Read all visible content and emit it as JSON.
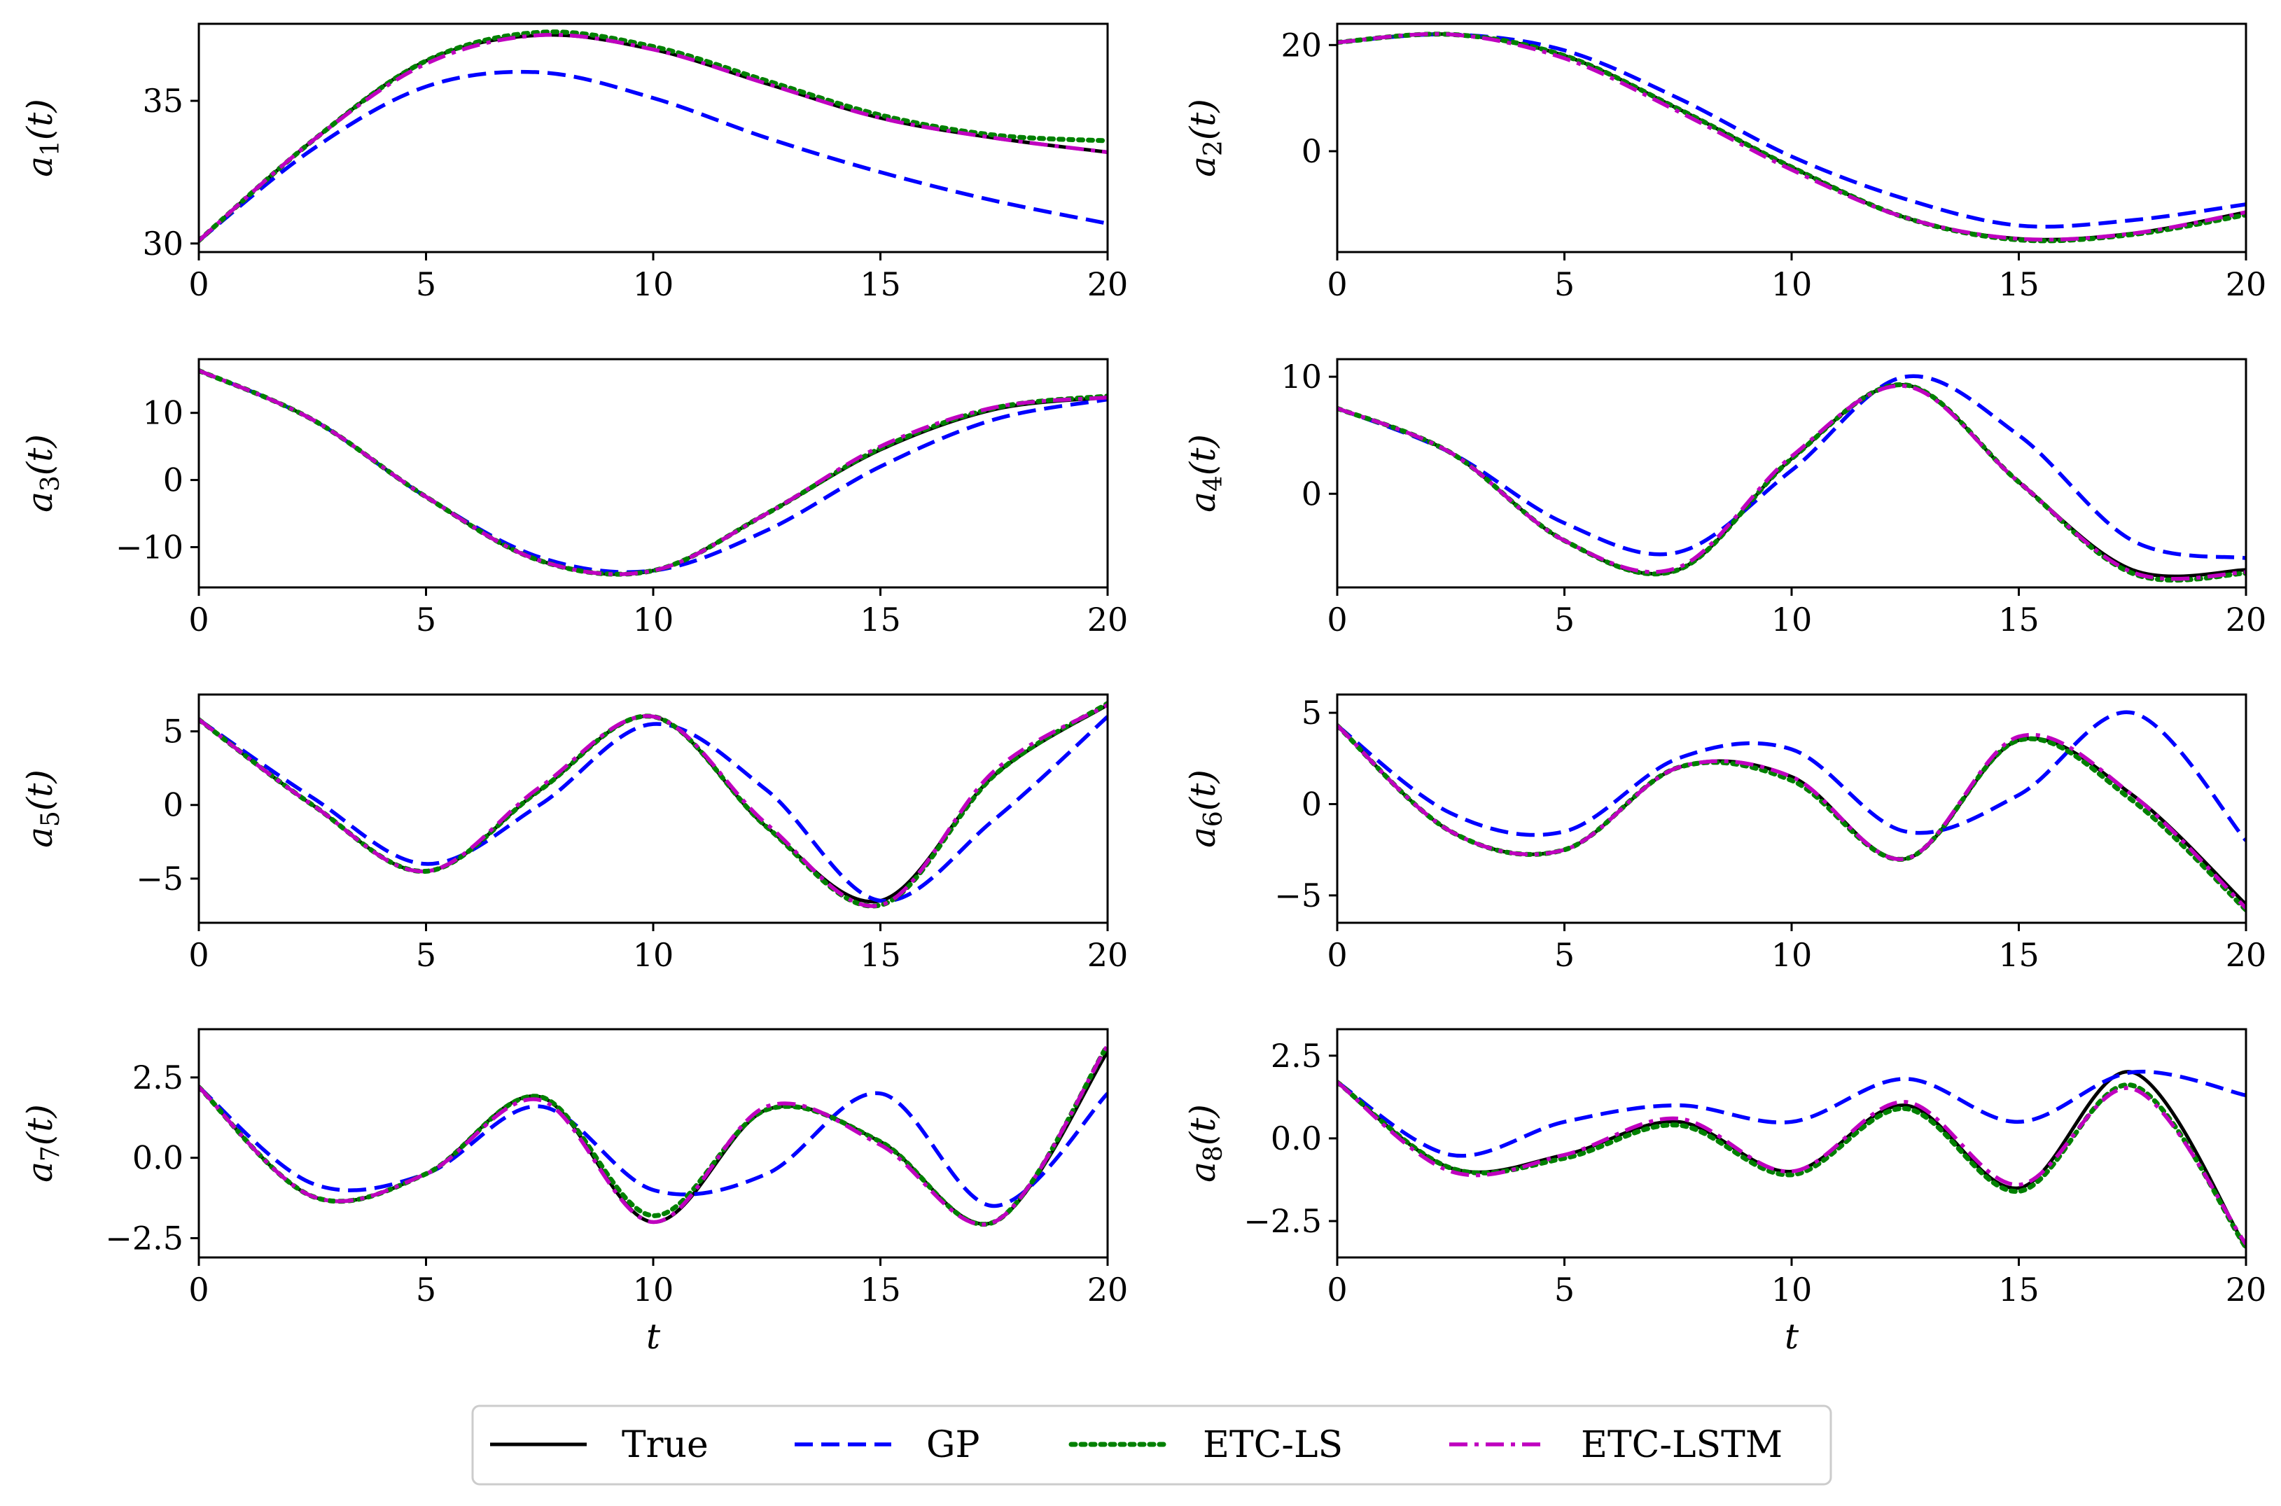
{
  "chart_data": [
    {
      "type": "line",
      "ylabel": "a1(t)",
      "xlabel": "",
      "xlim": [
        0,
        20
      ],
      "ylim": [
        29.7,
        37.7
      ],
      "xticks": [
        "0",
        "5",
        "10",
        "15",
        "20"
      ],
      "yticks": [
        "30",
        "35"
      ],
      "x": [
        0,
        2.5,
        5,
        7.5,
        10,
        12.5,
        15,
        17.5,
        20
      ],
      "series": [
        {
          "name": "True",
          "values": [
            30.1,
            33.6,
            36.4,
            37.3,
            36.8,
            35.6,
            34.4,
            33.7,
            33.2
          ]
        },
        {
          "name": "GP",
          "values": [
            30.1,
            33.3,
            35.5,
            36.0,
            35.1,
            33.7,
            32.5,
            31.5,
            30.7
          ]
        },
        {
          "name": "ETC-LS",
          "values": [
            30.1,
            33.6,
            36.4,
            37.4,
            36.9,
            35.7,
            34.5,
            33.8,
            33.6
          ]
        },
        {
          "name": "ETC-LSTM",
          "values": [
            30.1,
            33.6,
            36.3,
            37.3,
            36.8,
            35.6,
            34.4,
            33.7,
            33.2
          ]
        }
      ]
    },
    {
      "type": "line",
      "ylabel": "a2(t)",
      "xlabel": "",
      "xlim": [
        0,
        20
      ],
      "ylim": [
        -19,
        24
      ],
      "xticks": [
        "0",
        "5",
        "10",
        "15",
        "20"
      ],
      "yticks": [
        "0",
        "20"
      ],
      "x": [
        0,
        2.5,
        5,
        7.5,
        10,
        12.5,
        15,
        17.5,
        20
      ],
      "series": [
        {
          "name": "True",
          "values": [
            20.5,
            22.0,
            18.0,
            8.0,
            -3.0,
            -12.5,
            -16.5,
            -15.5,
            -11.5
          ]
        },
        {
          "name": "GP",
          "values": [
            20.5,
            22.0,
            19.0,
            10.0,
            -1.0,
            -9.0,
            -14.0,
            -13.0,
            -10.0
          ]
        },
        {
          "name": "ETC-LS",
          "values": [
            20.5,
            22.0,
            18.0,
            8.0,
            -3.0,
            -12.5,
            -16.7,
            -15.7,
            -12.0
          ]
        },
        {
          "name": "ETC-LSTM",
          "values": [
            20.5,
            22.0,
            17.5,
            7.5,
            -3.5,
            -12.5,
            -16.5,
            -15.5,
            -11.5
          ]
        }
      ]
    },
    {
      "type": "line",
      "ylabel": "a3(t)",
      "xlabel": "",
      "xlim": [
        0,
        20
      ],
      "ylim": [
        -16,
        18
      ],
      "xticks": [
        "0",
        "5",
        "10",
        "15",
        "20"
      ],
      "yticks": [
        "−10",
        "0",
        "10"
      ],
      "x": [
        0,
        2.5,
        5,
        7.5,
        10,
        12.5,
        15,
        17.5,
        20
      ],
      "series": [
        {
          "name": "True",
          "values": [
            16.3,
            9.0,
            -2.5,
            -12.0,
            -13.5,
            -5.0,
            4.5,
            10.5,
            12.3
          ]
        },
        {
          "name": "GP",
          "values": [
            16.3,
            9.0,
            -2.5,
            -11.5,
            -13.5,
            -7.5,
            2.0,
            9.0,
            12.0
          ]
        },
        {
          "name": "ETC-LS",
          "values": [
            16.3,
            9.0,
            -2.5,
            -12.0,
            -13.5,
            -5.0,
            4.7,
            10.7,
            12.5
          ]
        },
        {
          "name": "ETC-LSTM",
          "values": [
            16.3,
            9.0,
            -2.5,
            -12.0,
            -13.5,
            -5.0,
            5.0,
            10.8,
            12.3
          ]
        }
      ]
    },
    {
      "type": "line",
      "ylabel": "a4(t)",
      "xlabel": "",
      "xlim": [
        0,
        20
      ],
      "ylim": [
        -8,
        11.5
      ],
      "xticks": [
        "0",
        "5",
        "10",
        "15",
        "20"
      ],
      "yticks": [
        "0",
        "10"
      ],
      "x": [
        0,
        2.5,
        5,
        7.5,
        10,
        12.5,
        15,
        17.5,
        20
      ],
      "series": [
        {
          "name": "True",
          "values": [
            7.3,
            3.5,
            -4.0,
            -6.5,
            3.0,
            9.3,
            1.0,
            -6.5,
            -6.5
          ]
        },
        {
          "name": "GP",
          "values": [
            7.3,
            3.5,
            -2.5,
            -5.0,
            2.0,
            10.0,
            5.0,
            -4.0,
            -5.5
          ]
        },
        {
          "name": "ETC-LS",
          "values": [
            7.3,
            3.5,
            -4.0,
            -6.5,
            3.0,
            9.3,
            1.0,
            -6.8,
            -6.8
          ]
        },
        {
          "name": "ETC-LSTM",
          "values": [
            7.3,
            3.5,
            -4.0,
            -6.3,
            3.2,
            9.2,
            1.0,
            -6.7,
            -6.7
          ]
        }
      ]
    },
    {
      "type": "line",
      "ylabel": "a5(t)",
      "xlabel": "",
      "xlim": [
        0,
        20
      ],
      "ylim": [
        -8,
        7.5
      ],
      "xticks": [
        "0",
        "5",
        "10",
        "15",
        "20"
      ],
      "yticks": [
        "−5",
        "0",
        "5"
      ],
      "x": [
        0,
        2.5,
        5,
        7.5,
        10,
        12.5,
        15,
        17.5,
        20
      ],
      "series": [
        {
          "name": "True",
          "values": [
            5.8,
            0.0,
            -4.5,
            1.0,
            6.0,
            -1.5,
            -6.5,
            2.0,
            6.8
          ]
        },
        {
          "name": "GP",
          "values": [
            5.8,
            0.5,
            -4.0,
            0.0,
            5.5,
            1.0,
            -6.5,
            -1.0,
            6.0
          ]
        },
        {
          "name": "ETC-LS",
          "values": [
            5.8,
            0.0,
            -4.5,
            1.0,
            6.0,
            -1.5,
            -6.8,
            2.0,
            6.9
          ]
        },
        {
          "name": "ETC-LSTM",
          "values": [
            5.8,
            0.0,
            -4.5,
            1.2,
            6.0,
            -1.3,
            -6.8,
            2.3,
            6.8
          ]
        }
      ]
    },
    {
      "type": "line",
      "ylabel": "a6(t)",
      "xlabel": "",
      "xlim": [
        0,
        20
      ],
      "ylim": [
        -6.5,
        6
      ],
      "xticks": [
        "0",
        "5",
        "10",
        "15",
        "20"
      ],
      "yticks": [
        "−5",
        "0",
        "5"
      ],
      "x": [
        0,
        2.5,
        5,
        7.5,
        10,
        12.5,
        15,
        17.5,
        20
      ],
      "series": [
        {
          "name": "True",
          "values": [
            4.3,
            -1.5,
            -2.5,
            2.0,
            1.5,
            -3.0,
            3.5,
            0.5,
            -5.5
          ]
        },
        {
          "name": "GP",
          "values": [
            4.3,
            -0.5,
            -1.5,
            2.5,
            3.0,
            -1.5,
            0.5,
            5.0,
            -2.0
          ]
        },
        {
          "name": "ETC-LS",
          "values": [
            4.3,
            -1.5,
            -2.5,
            2.0,
            1.3,
            -3.0,
            3.5,
            0.2,
            -5.8
          ]
        },
        {
          "name": "ETC-LSTM",
          "values": [
            4.3,
            -1.5,
            -2.5,
            2.0,
            1.5,
            -3.0,
            3.7,
            0.5,
            -5.7
          ]
        }
      ]
    },
    {
      "type": "line",
      "ylabel": "a7(t)",
      "xlabel": "t",
      "xlim": [
        0,
        20
      ],
      "ylim": [
        -3.1,
        4
      ],
      "xticks": [
        "0",
        "5",
        "10",
        "15",
        "20"
      ],
      "yticks": [
        "−2.5",
        "0.0",
        "2.5"
      ],
      "x": [
        0,
        2.5,
        5,
        7.5,
        10,
        12.5,
        15,
        17.5,
        20
      ],
      "series": [
        {
          "name": "True",
          "values": [
            2.2,
            -1.2,
            -0.5,
            1.9,
            -2.0,
            1.5,
            0.5,
            -2.0,
            3.3
          ]
        },
        {
          "name": "GP",
          "values": [
            2.2,
            -0.8,
            -0.5,
            1.6,
            -1.0,
            -0.5,
            2.0,
            -1.5,
            2.0
          ]
        },
        {
          "name": "ETC-LS",
          "values": [
            2.2,
            -1.2,
            -0.5,
            1.9,
            -1.8,
            1.5,
            0.5,
            -2.0,
            3.5
          ]
        },
        {
          "name": "ETC-LSTM",
          "values": [
            2.2,
            -1.2,
            -0.5,
            1.8,
            -2.0,
            1.6,
            0.4,
            -2.0,
            3.5
          ]
        }
      ]
    },
    {
      "type": "line",
      "ylabel": "a8(t)",
      "xlabel": "t",
      "xlim": [
        0,
        20
      ],
      "ylim": [
        -3.6,
        3.3
      ],
      "xticks": [
        "0",
        "5",
        "10",
        "15",
        "20"
      ],
      "yticks": [
        "−2.5",
        "0.0",
        "2.5"
      ],
      "x": [
        0,
        2.5,
        5,
        7.5,
        10,
        12.5,
        15,
        17.5,
        20
      ],
      "series": [
        {
          "name": "True",
          "values": [
            1.7,
            -0.9,
            -0.5,
            0.5,
            -1.0,
            1.0,
            -1.5,
            2.0,
            -3.3
          ]
        },
        {
          "name": "GP",
          "values": [
            1.7,
            -0.5,
            0.5,
            1.0,
            0.5,
            1.8,
            0.5,
            2.0,
            1.3
          ]
        },
        {
          "name": "ETC-LS",
          "values": [
            1.7,
            -0.9,
            -0.6,
            0.4,
            -1.1,
            0.9,
            -1.6,
            1.6,
            -3.3
          ]
        },
        {
          "name": "ETC-LSTM",
          "values": [
            1.7,
            -1.0,
            -0.5,
            0.6,
            -1.0,
            1.1,
            -1.4,
            1.5,
            -3.2
          ]
        }
      ]
    }
  ],
  "legend": {
    "position": "bottom-center",
    "entries": [
      {
        "label": "True",
        "color": "#000000",
        "dash": "solid"
      },
      {
        "label": "GP",
        "color": "#0000ff",
        "dash": "dashed"
      },
      {
        "label": "ETC-LS",
        "color": "#008000",
        "dash": "dotted"
      },
      {
        "label": "ETC-LSTM",
        "color": "#bf00bf",
        "dash": "dashdot"
      }
    ]
  },
  "colors": {
    "True": "#000000",
    "GP": "#0000ff",
    "ETC-LS": "#008000",
    "ETC-LSTM": "#bf00bf"
  }
}
